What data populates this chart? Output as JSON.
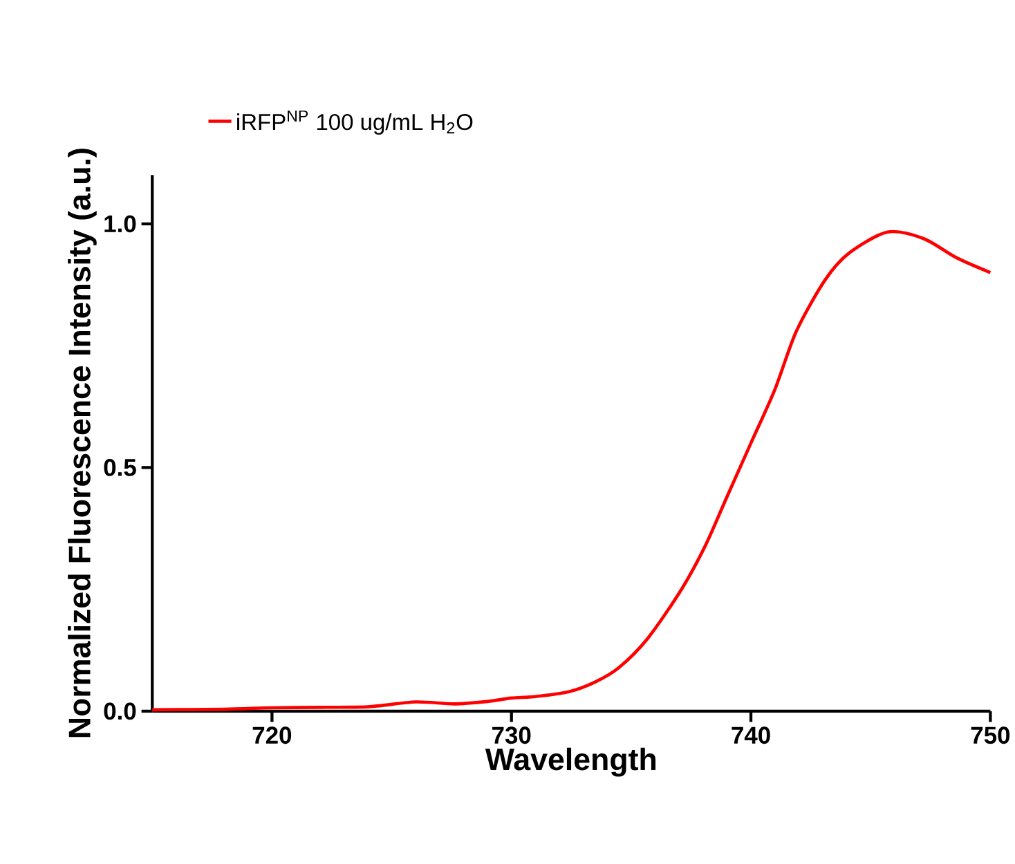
{
  "chart_data": {
    "type": "line",
    "xlabel": "Wavelength",
    "ylabel": "Normalized Fluorescence Intensity (a.u.)",
    "x": [
      715,
      718,
      720,
      722,
      724,
      726,
      727.6,
      729,
      730,
      731,
      732.4,
      733.5,
      734.5,
      735.7,
      737.1,
      738.1,
      739,
      740,
      741,
      741.9,
      743.1,
      744.1,
      745.7,
      747.2,
      748.6,
      750
    ],
    "series": [
      {
        "name": "iRFP$^{NP}$ 100 ug/mL H$_{2}$O",
        "color": "#ff0000",
        "values": [
          0.003,
          0.004,
          0.007,
          0.008,
          0.009,
          0.019,
          0.015,
          0.02,
          0.027,
          0.03,
          0.04,
          0.06,
          0.09,
          0.15,
          0.25,
          0.34,
          0.44,
          0.55,
          0.66,
          0.78,
          0.885,
          0.94,
          0.983,
          0.97,
          0.93,
          0.9
        ]
      }
    ],
    "xlim": [
      715,
      750
    ],
    "ylim": [
      0,
      1.1
    ],
    "xticks": [
      720,
      730,
      740,
      750
    ],
    "yticks": [
      {
        "value": 0,
        "label": "0.0"
      },
      0.5,
      {
        "value": 1,
        "label": "1.0"
      }
    ],
    "grid": false,
    "legend": "top",
    "marker": "none",
    "line_style": "solid"
  }
}
